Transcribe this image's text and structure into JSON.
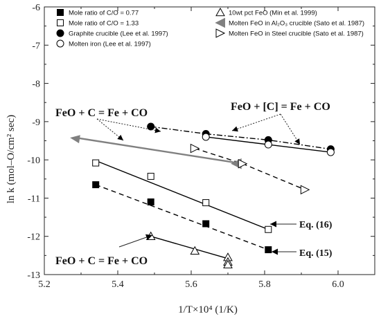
{
  "chart_data": {
    "type": "scatter",
    "xlabel": "1/T×10⁴ (1/K)",
    "ylabel": "ln k (mol–O/cm² sec)",
    "xlim": [
      5.2,
      6.1
    ],
    "ylim": [
      -13,
      -6
    ],
    "xticks": [
      "5.2",
      "5.4",
      "5.6",
      "5.8",
      "6.0"
    ],
    "yticks": [
      "-6",
      "-7",
      "-8",
      "-9",
      "-10",
      "-11",
      "-12",
      "-13"
    ],
    "legend_placement": "top",
    "legend": [
      "Mole ratio of C/O = 0.77",
      "Mole ratio of C/O = 1.33",
      "Graphite crucible (Lee et al. 1997)",
      "Molten iron (Lee et al. 1997)",
      "10wt pct FeO (Min et al. 1999)",
      "Molten FeO in Al₂O₃ crucible (Sato et al. 1987)",
      "Molten FeO in Steel crucible (Sato et al. 1987)"
    ],
    "series": [
      {
        "name": "Mole ratio of C/O = 0.77",
        "marker": "square-filled",
        "line": "dashed",
        "x": [
          5.34,
          5.49,
          5.64,
          5.81
        ],
        "y": [
          -10.65,
          -11.1,
          -11.67,
          -12.35
        ]
      },
      {
        "name": "Mole ratio of C/O = 1.33",
        "marker": "square-open",
        "line": "solid",
        "x": [
          5.34,
          5.49,
          5.64,
          5.81
        ],
        "y": [
          -10.08,
          -10.43,
          -11.12,
          -11.82
        ]
      },
      {
        "name": "Graphite crucible (Lee et al. 1997)",
        "marker": "circle-filled",
        "line": "dashdot",
        "x": [
          5.49,
          5.64,
          5.81,
          5.98
        ],
        "y": [
          -9.13,
          -9.32,
          -9.48,
          -9.72
        ]
      },
      {
        "name": "Molten iron (Lee et al. 1997)",
        "marker": "circle-open",
        "line": "solid",
        "x": [
          5.64,
          5.81,
          5.98
        ],
        "y": [
          -9.4,
          -9.6,
          -9.8
        ]
      },
      {
        "name": "10wt pct FeO (Min et al. 1999)",
        "marker": "triangle-up-open",
        "line": "solid",
        "x": [
          5.49,
          5.61,
          5.7,
          5.7,
          5.7
        ],
        "y": [
          -12.0,
          -12.38,
          -12.55,
          -12.67,
          -12.74
        ]
      },
      {
        "name": "Molten FeO in Al₂O₃ crucible (Sato et al. 1987)",
        "marker": "triangle-left-filled",
        "line": "arrow",
        "x": [
          5.27,
          5.74
        ],
        "y": [
          -9.42,
          -10.1
        ]
      },
      {
        "name": "Molten FeO in Steel crucible (Sato et al. 1987)",
        "marker": "triangle-right-open",
        "line": "dashed",
        "x": [
          5.61,
          5.74,
          5.91
        ],
        "y": [
          -9.7,
          -10.1,
          -10.78
        ]
      }
    ],
    "annotations": {
      "reaction_upper_left": "FeO + C = Fe + CO",
      "reaction_upper_right": "FeO + [C] = Fe + CO",
      "reaction_lower_left": "FeO + C = Fe + CO",
      "eq16": "Eq. (16)",
      "eq15": "Eq. (15)"
    },
    "fit_lines": [
      {
        "name": "Eq. (15)",
        "x": [
          5.34,
          5.81
        ],
        "y": [
          -10.65,
          -12.35
        ],
        "style": "dashed"
      },
      {
        "name": "Eq. (16)",
        "x": [
          5.34,
          5.81
        ],
        "y": [
          -10.02,
          -11.82
        ],
        "style": "solid"
      }
    ]
  }
}
